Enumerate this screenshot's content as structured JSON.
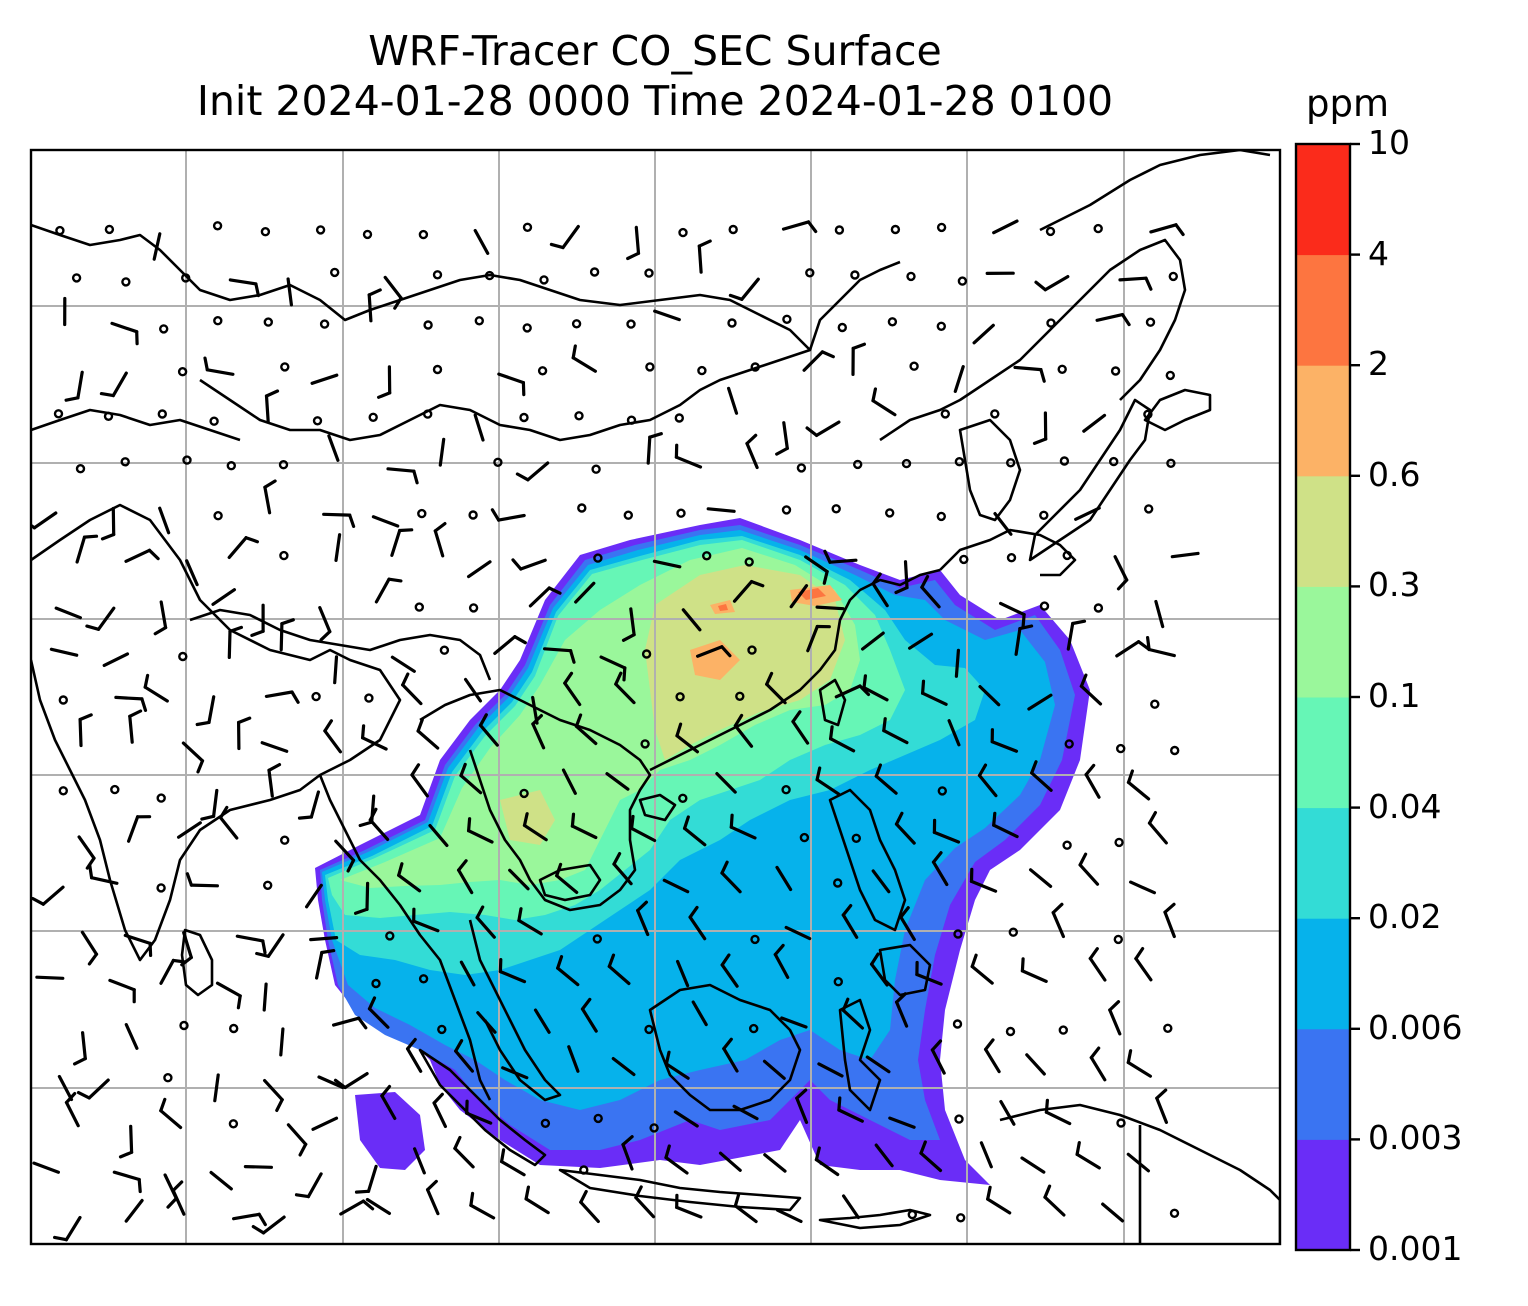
{
  "title": {
    "line1": "WRF-Tracer CO_SEC Surface",
    "line2": "Init 2024-01-28 0000 Time 2024-01-28 0100"
  },
  "colorbar": {
    "unit": "ppm",
    "ticks": [
      "0.001",
      "0.003",
      "0.006",
      "0.02",
      "0.04",
      "0.1",
      "0.3",
      "0.6",
      "2",
      "4",
      "10"
    ],
    "colors": [
      "#6a2df7",
      "#3a74f2",
      "#06b2eb",
      "#33dcd6",
      "#66f6b6",
      "#9af79b",
      "#cfe187",
      "#fcb266",
      "#fd7540",
      "#fb2b1b"
    ]
  },
  "map": {
    "gridlines": true,
    "coastline_color": "#000000",
    "gridline_color": "#b0b0b0",
    "wind_marker": "barbs"
  }
}
